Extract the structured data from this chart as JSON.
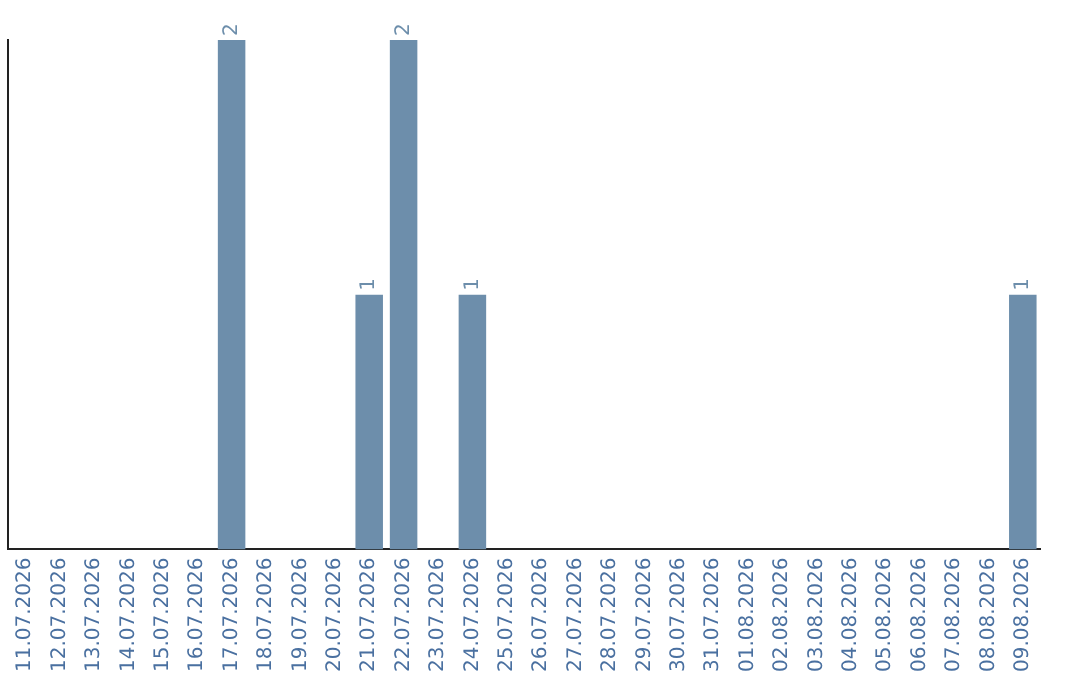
{
  "chart_data": {
    "type": "bar",
    "categories": [
      "11.07.2026",
      "12.07.2026",
      "13.07.2026",
      "14.07.2026",
      "15.07.2026",
      "16.07.2026",
      "17.07.2026",
      "18.07.2026",
      "19.07.2026",
      "20.07.2026",
      "21.07.2026",
      "22.07.2026",
      "23.07.2026",
      "24.07.2026",
      "25.07.2026",
      "26.07.2026",
      "27.07.2026",
      "28.07.2026",
      "29.07.2026",
      "30.07.2026",
      "31.07.2026",
      "01.08.2026",
      "02.08.2026",
      "03.08.2026",
      "04.08.2026",
      "05.08.2026",
      "06.08.2026",
      "07.08.2026",
      "08.08.2026",
      "09.08.2026"
    ],
    "values": [
      0,
      0,
      0,
      0,
      0,
      0,
      2,
      0,
      0,
      0,
      1,
      2,
      0,
      1,
      0,
      0,
      0,
      0,
      0,
      0,
      0,
      0,
      0,
      0,
      0,
      0,
      0,
      0,
      0,
      1
    ],
    "value_labels": [
      null,
      null,
      null,
      null,
      null,
      null,
      "2",
      null,
      null,
      null,
      "1",
      "2",
      null,
      "1",
      null,
      null,
      null,
      null,
      null,
      null,
      null,
      null,
      null,
      null,
      null,
      null,
      null,
      null,
      null,
      "1"
    ],
    "color": "#6d8eab",
    "grid": false,
    "legend": false,
    "tick_labels": "x"
  }
}
